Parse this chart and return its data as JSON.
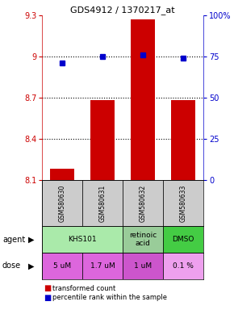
{
  "title": "GDS4912 / 1370217_at",
  "samples": [
    "GSM580630",
    "GSM580631",
    "GSM580632",
    "GSM580633"
  ],
  "bar_values": [
    8.18,
    8.68,
    9.27,
    8.68
  ],
  "percentile_values": [
    71,
    75,
    76,
    74
  ],
  "ylim_left": [
    8.1,
    9.3
  ],
  "ylim_right": [
    0,
    100
  ],
  "yticks_left": [
    8.1,
    8.4,
    8.7,
    9.0,
    9.3
  ],
  "ytick_labels_left": [
    "8.1",
    "8.4",
    "8.7",
    "9",
    "9.3"
  ],
  "yticks_right": [
    0,
    25,
    50,
    75,
    100
  ],
  "ytick_labels_right": [
    "0",
    "25",
    "50",
    "75",
    "100%"
  ],
  "hlines": [
    9.0,
    8.7,
    8.4
  ],
  "bar_color": "#cc0000",
  "dot_color": "#0000cc",
  "bar_width": 0.6,
  "agents": [
    [
      "KHS101",
      0,
      2
    ],
    [
      "retinoic\nacid",
      2,
      3
    ],
    [
      "DMSO",
      3,
      4
    ]
  ],
  "agent_colors": [
    "#aaeaaa",
    "#99cc99",
    "#44cc44"
  ],
  "doses": [
    "5 uM",
    "1.7 uM",
    "1 uM",
    "0.1 %"
  ],
  "dose_colors": [
    "#dd66dd",
    "#dd66dd",
    "#cc55cc",
    "#eea0ee"
  ],
  "sample_box_color": "#cccccc",
  "legend_bar_color": "#cc0000",
  "legend_dot_color": "#0000cc",
  "fig_width": 2.9,
  "fig_height": 3.84,
  "dpi": 100
}
